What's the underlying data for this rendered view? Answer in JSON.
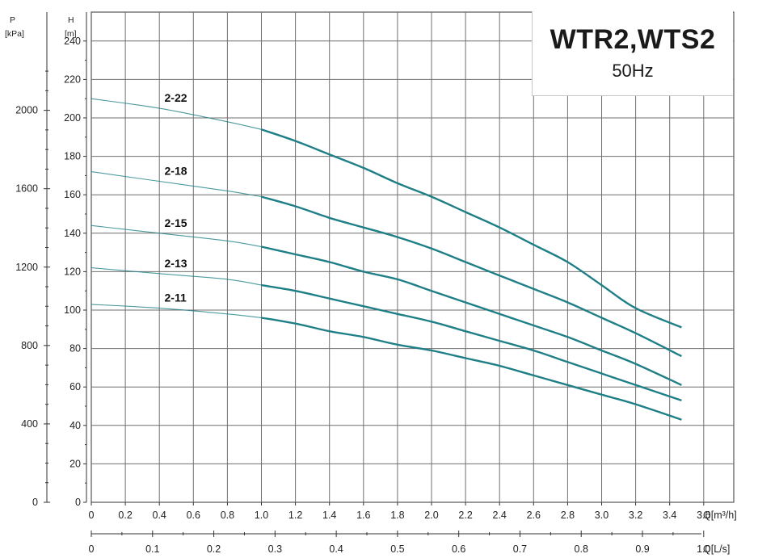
{
  "chart_data": {
    "type": "line",
    "title": "WTR2,WTS2",
    "subtitle": "50Hz",
    "left_axis": {
      "label": "P",
      "unit": "[kPa]",
      "ticks": [
        0,
        400,
        800,
        1200,
        1600,
        2000
      ]
    },
    "y_axis": {
      "label": "H",
      "unit": "[m]",
      "range": [
        0,
        240
      ],
      "ticks": [
        0,
        20,
        40,
        60,
        80,
        100,
        120,
        140,
        160,
        180,
        200,
        220,
        240
      ]
    },
    "x_axis": {
      "label": "Q[m³/h]",
      "range": [
        0,
        3.8
      ],
      "ticks": [
        "0",
        "0.2",
        "0.4",
        "0.6",
        "0.8",
        "1.0",
        "1.2",
        "1.4",
        "1.6",
        "1.8",
        "2.0",
        "2.2",
        "2.4",
        "2.6",
        "2.8",
        "3.0",
        "3.2",
        "3.4",
        "3.6"
      ],
      "tick_values": [
        0,
        0.2,
        0.4,
        0.6,
        0.8,
        1.0,
        1.2,
        1.4,
        1.6,
        1.8,
        2.0,
        2.2,
        2.4,
        2.6,
        2.8,
        3.0,
        3.2,
        3.4,
        3.6
      ]
    },
    "x2_axis": {
      "label": "Q[L/s]",
      "ticks": [
        "0",
        "0.1",
        "0.2",
        "0.3",
        "0.4",
        "0.5",
        "0.6",
        "0.7",
        "0.8",
        "0.9",
        "1.0"
      ],
      "tick_values": [
        0,
        0.1,
        0.2,
        0.3,
        0.4,
        0.5,
        0.6,
        0.7,
        0.8,
        0.9,
        1.0
      ]
    },
    "grid": true,
    "series_color": "#1f7f86",
    "series": [
      {
        "name": "2-22",
        "x": [
          0,
          0.4,
          0.8,
          1.0,
          1.2,
          1.4,
          1.6,
          1.8,
          2.0,
          2.2,
          2.4,
          2.6,
          2.8,
          3.0,
          3.2,
          3.47
        ],
        "y": [
          210,
          205,
          198,
          194,
          188,
          181,
          174,
          166,
          159,
          151,
          143,
          134,
          125,
          113,
          101,
          91
        ]
      },
      {
        "name": "2-18",
        "x": [
          0,
          0.4,
          0.8,
          1.0,
          1.2,
          1.4,
          1.6,
          1.8,
          2.0,
          2.2,
          2.4,
          2.6,
          2.8,
          3.0,
          3.2,
          3.47
        ],
        "y": [
          172,
          167,
          162,
          159,
          154,
          148,
          143,
          138,
          132,
          125,
          118,
          111,
          104,
          96,
          88,
          76
        ]
      },
      {
        "name": "2-15",
        "x": [
          0,
          0.4,
          0.8,
          1.0,
          1.2,
          1.4,
          1.6,
          1.8,
          2.0,
          2.2,
          2.4,
          2.6,
          2.8,
          3.0,
          3.2,
          3.47
        ],
        "y": [
          144,
          140,
          136,
          133,
          129,
          125,
          120,
          116,
          110,
          104,
          98,
          92,
          86,
          79,
          72,
          61
        ]
      },
      {
        "name": "2-13",
        "x": [
          0,
          0.4,
          0.8,
          1.0,
          1.2,
          1.4,
          1.6,
          1.8,
          2.0,
          2.2,
          2.4,
          2.6,
          2.8,
          3.0,
          3.2,
          3.47
        ],
        "y": [
          122,
          119,
          116,
          113,
          110,
          106,
          102,
          98,
          94,
          89,
          84,
          79,
          73,
          67,
          61,
          53
        ]
      },
      {
        "name": "2-11",
        "x": [
          0,
          0.4,
          0.8,
          1.0,
          1.2,
          1.4,
          1.6,
          1.8,
          2.0,
          2.2,
          2.4,
          2.6,
          2.8,
          3.0,
          3.2,
          3.47
        ],
        "y": [
          103,
          101,
          98,
          96,
          93,
          89,
          86,
          82,
          79,
          75,
          71,
          66,
          61,
          56,
          51,
          43
        ]
      }
    ]
  }
}
